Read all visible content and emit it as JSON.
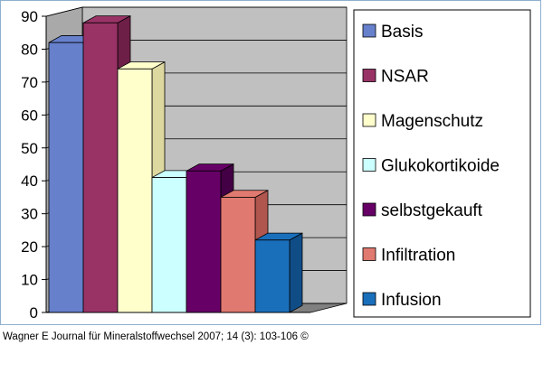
{
  "chart_data": {
    "type": "bar",
    "style": "3d-clustered",
    "categories": [
      "Basis",
      "NSAR",
      "Magenschutz",
      "Glukokortikoide",
      "selbstgekauft",
      "Infiltration",
      "Infusion"
    ],
    "values": [
      82,
      88,
      74,
      41,
      43,
      35,
      22
    ],
    "colors": [
      "#6680cc",
      "#993366",
      "#ffffcc",
      "#ccffff",
      "#660066",
      "#e0796f",
      "#1a6fbb"
    ],
    "side_colors": [
      "#3d5a99",
      "#6e1f47",
      "#ddd8a0",
      "#99c7c7",
      "#440044",
      "#b0564e",
      "#104d87"
    ],
    "ylim": [
      0,
      90
    ],
    "yticks": [
      "0",
      "10",
      "20",
      "30",
      "40",
      "50",
      "60",
      "70",
      "80",
      "90"
    ],
    "grid": true,
    "legend_position": "right",
    "wall_color": "#c0c0c0",
    "title": "",
    "xlabel": "",
    "ylabel": ""
  },
  "credit": "Wagner E Journal für Mineralstoffwechsel 2007; 14 (3): 103-106 ©"
}
